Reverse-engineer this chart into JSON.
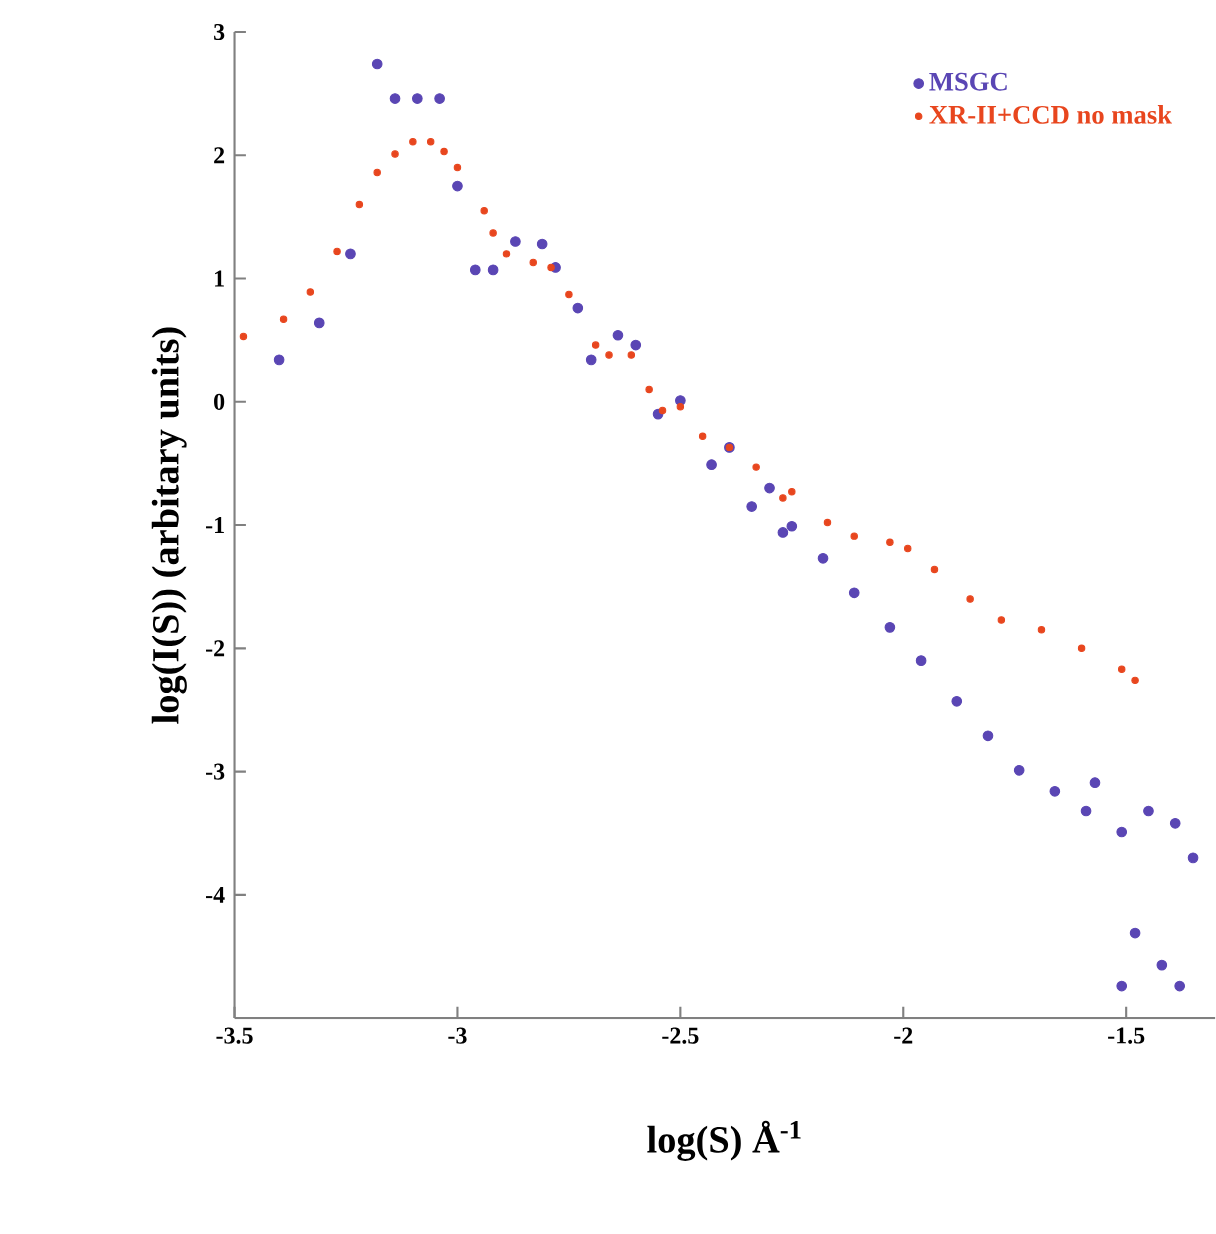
{
  "chart_data": {
    "type": "scatter",
    "xlabel": "log(S) Å$^{-1}$",
    "ylabel": "log(I(S)) (arbitary units)",
    "xlim": [
      -3.5,
      -1.3
    ],
    "ylim": [
      -5,
      3
    ],
    "xticks": [
      -3.5,
      -3,
      -2.5,
      -2,
      -1.5
    ],
    "yticks": [
      -4,
      -3,
      -2,
      -1,
      0,
      1,
      2,
      3
    ],
    "legend": "top right",
    "series": [
      {
        "name": "MSGC",
        "color": "#5a46b4",
        "x": [
          -3.4,
          -3.31,
          -3.24,
          -3.18,
          -3.14,
          -3.09,
          -3.04,
          -3.0,
          -2.96,
          -2.92,
          -2.87,
          -2.81,
          -2.78,
          -2.73,
          -2.7,
          -2.64,
          -2.6,
          -2.55,
          -2.5,
          -2.43,
          -2.39,
          -2.34,
          -2.3,
          -2.27,
          -2.25,
          -2.18,
          -2.11,
          -2.03,
          -1.96,
          -1.88,
          -1.81,
          -1.74,
          -1.66,
          -1.59,
          -1.57,
          -1.51,
          -1.48,
          -1.45,
          -1.42,
          -1.39,
          -1.38,
          -1.35,
          -1.51
        ],
        "values": [
          0.34,
          0.64,
          1.2,
          2.74,
          2.46,
          2.46,
          2.46,
          1.75,
          1.07,
          1.07,
          1.3,
          1.28,
          1.09,
          0.76,
          0.34,
          0.54,
          0.46,
          -0.1,
          0.01,
          -0.51,
          -0.37,
          -0.85,
          -0.7,
          -1.06,
          -1.01,
          -1.27,
          -1.55,
          -1.83,
          -2.1,
          -2.43,
          -2.71,
          -2.99,
          -3.16,
          -3.32,
          -3.09,
          -3.49,
          -4.31,
          -3.32,
          -4.57,
          -3.42,
          -4.74,
          -3.7,
          -4.74
        ]
      },
      {
        "name": "XR-II+CCD no mask",
        "color": "#e8461e",
        "x": [
          -3.48,
          -3.39,
          -3.33,
          -3.27,
          -3.22,
          -3.18,
          -3.14,
          -3.1,
          -3.06,
          -3.03,
          -3.0,
          -2.94,
          -2.92,
          -2.89,
          -2.83,
          -2.79,
          -2.75,
          -2.69,
          -2.66,
          -2.61,
          -2.57,
          -2.54,
          -2.5,
          -2.45,
          -2.39,
          -2.33,
          -2.27,
          -2.25,
          -2.17,
          -2.11,
          -2.03,
          -1.99,
          -1.93,
          -1.85,
          -1.78,
          -1.69,
          -1.6,
          -1.51,
          -1.48
        ],
        "values": [
          0.53,
          0.67,
          0.89,
          1.22,
          1.6,
          1.86,
          2.01,
          2.11,
          2.11,
          2.03,
          1.9,
          1.55,
          1.37,
          1.2,
          1.13,
          1.09,
          0.87,
          0.46,
          0.38,
          0.38,
          0.1,
          -0.07,
          -0.04,
          -0.28,
          -0.37,
          -0.53,
          -0.78,
          -0.73,
          -0.98,
          -1.09,
          -1.14,
          -1.19,
          -1.36,
          -1.6,
          -1.77,
          -1.85,
          -2.0,
          -2.17,
          -2.26
        ]
      }
    ]
  }
}
